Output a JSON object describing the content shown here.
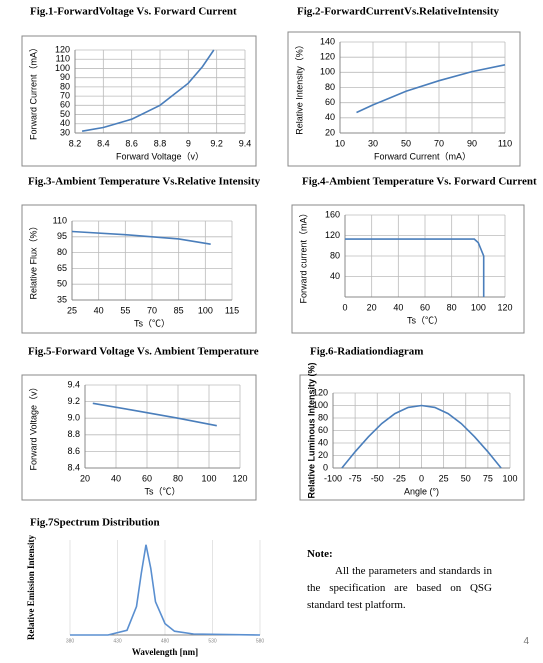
{
  "chart_data": [
    {
      "type": "line",
      "title": "Fig.1-ForwardVoltage Vs. Forward Current",
      "x_label": "Forward Voltage（v）",
      "y_label": "Forward Current（mA）",
      "x": [
        8.25,
        8.4,
        8.6,
        8.8,
        9.0,
        9.1,
        9.18
      ],
      "values": [
        32,
        36,
        45,
        60,
        84,
        102,
        120
      ],
      "color": "#4a7ebb",
      "xlim": [
        8.2,
        9.4
      ],
      "xticks": [
        8.2,
        8.4,
        8.6,
        8.8,
        9,
        9.2,
        9.4
      ],
      "ylim": [
        30,
        120
      ],
      "yticks": [
        30,
        40,
        50,
        60,
        70,
        80,
        90,
        100,
        110,
        120
      ],
      "grid": true
    },
    {
      "type": "line",
      "title": "Fig.2-ForwardCurrentVs.RelativeIntensity",
      "x_label": "Forward Current（mA）",
      "y_label": "Relative Intensity（%）",
      "x": [
        20,
        30,
        50,
        70,
        90,
        110
      ],
      "values": [
        47,
        57,
        75,
        89,
        101,
        110
      ],
      "color": "#4a7ebb",
      "xlim": [
        10,
        110
      ],
      "xticks": [
        10,
        30,
        50,
        70,
        90,
        110
      ],
      "ylim": [
        20,
        140
      ],
      "yticks": [
        20,
        40,
        60,
        80,
        100,
        120,
        140
      ],
      "grid": true
    },
    {
      "type": "line",
      "title": "Fig.3-Ambient Temperature Vs.Relative Intensity",
      "x_label": "Ts（℃）",
      "y_label": "Relative Flux（%）",
      "x": [
        25,
        55,
        85,
        103
      ],
      "values": [
        100,
        97,
        93,
        88
      ],
      "color": "#4a7ebb",
      "xlim": [
        25,
        115
      ],
      "xticks": [
        25,
        40,
        55,
        70,
        85,
        100,
        115
      ],
      "ylim": [
        35,
        110
      ],
      "yticks": [
        35,
        50,
        65,
        80,
        95,
        110
      ],
      "grid": true
    },
    {
      "type": "line",
      "title": "Fig.4-Ambient Temperature Vs. Forward Current",
      "x_label": "Ts（℃）",
      "y_label": "Forward current（mA）",
      "x": [
        0,
        97,
        100,
        104,
        104
      ],
      "values": [
        113,
        113,
        106,
        80,
        0
      ],
      "color": "#4a7ebb",
      "xlim": [
        0,
        120
      ],
      "xticks": [
        0,
        20,
        40,
        60,
        80,
        100,
        120
      ],
      "ylim": [
        0,
        160
      ],
      "yticks": [
        40,
        80,
        120,
        160
      ],
      "grid": true
    },
    {
      "type": "line",
      "title": "Fig.5-Forward Voltage Vs. Ambient Temperature",
      "x_label": "Ts（℃）",
      "y_label": "Forward Voltage（v）",
      "x": [
        25,
        50,
        80,
        105
      ],
      "values": [
        9.18,
        9.1,
        9.0,
        8.91
      ],
      "color": "#4a7ebb",
      "xlim": [
        20,
        120
      ],
      "xticks": [
        20,
        40,
        60,
        80,
        100,
        120
      ],
      "ylim": [
        8.4,
        9.4
      ],
      "yticks": [
        8.4,
        8.6,
        8.8,
        {
          "value": 9,
          "label": "9.0"
        },
        9.2,
        9.4
      ],
      "grid": true
    },
    {
      "type": "line",
      "title": "Fig.6-Radiationdiagram",
      "x_label": "Angle (°)",
      "y_label": "Relative Luminous Intensity (%)",
      "x": [
        -90,
        -75,
        -60,
        -45,
        -30,
        -15,
        0,
        15,
        30,
        45,
        60,
        75,
        90
      ],
      "values": [
        0,
        26,
        50,
        71,
        87,
        97,
        100,
        97,
        87,
        71,
        50,
        26,
        0
      ],
      "color": "#4a7ebb",
      "xlim": [
        -100,
        100
      ],
      "xticks": [
        -100,
        -75,
        -50,
        -25,
        0,
        25,
        50,
        75,
        100
      ],
      "ylim": [
        0,
        120
      ],
      "yticks": [
        0,
        20,
        40,
        60,
        80,
        100,
        120
      ],
      "grid": true
    },
    {
      "type": "line",
      "title": "Fig.7Spectrum Distribution",
      "x_label": "Wavelength [nm]",
      "y_label": "Relative Emission Intensity",
      "x": [
        380,
        420,
        440,
        450,
        455,
        460,
        465,
        470,
        480,
        490,
        510,
        580
      ],
      "values": [
        0,
        0,
        0.05,
        0.3,
        0.65,
        0.95,
        0.7,
        0.35,
        0.12,
        0.04,
        0.01,
        0
      ],
      "color": "#5a8fd0",
      "xlim": [
        380,
        580
      ],
      "xticks": [
        380,
        430,
        480,
        530,
        580
      ],
      "ylim": [
        0,
        1
      ],
      "grid": true
    }
  ],
  "note": {
    "heading": "Note:",
    "text": "All the parameters and standards in the specification are based on QSG standard test platform."
  },
  "page_number": "4"
}
